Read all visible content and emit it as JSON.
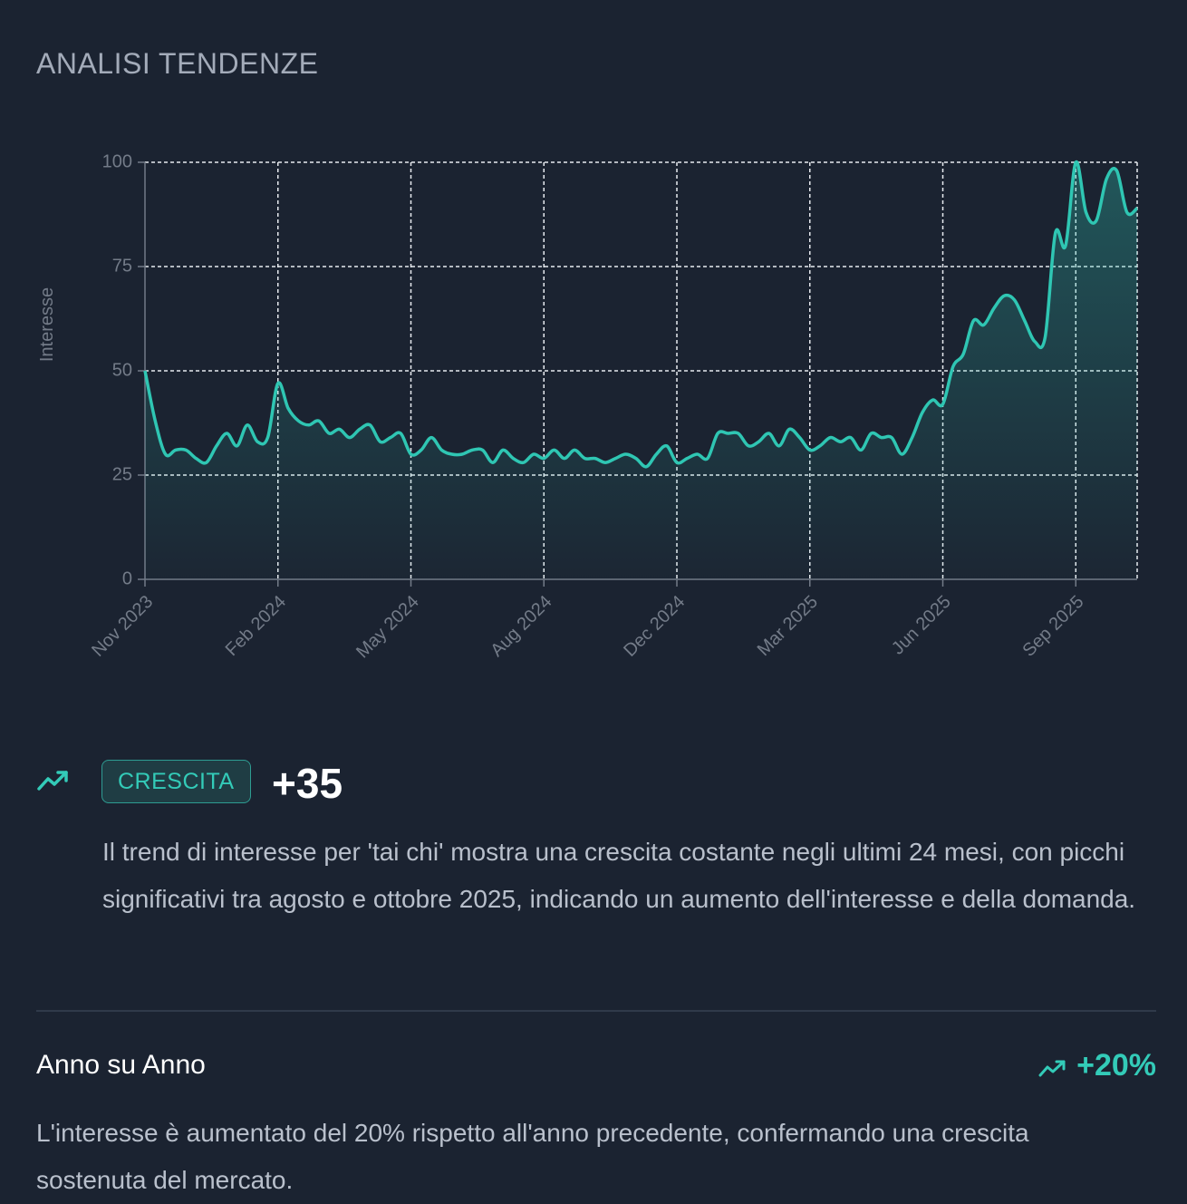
{
  "header": {
    "title": "ANALISI TENDENZE"
  },
  "chart_data": {
    "type": "line",
    "y_label": "Interesse",
    "categories": [
      "Nov 2023",
      null,
      null,
      null,
      null,
      null,
      null,
      null,
      null,
      null,
      null,
      null,
      null,
      "Feb 2024",
      null,
      null,
      null,
      null,
      null,
      null,
      null,
      null,
      null,
      null,
      null,
      null,
      "May 2024",
      null,
      null,
      null,
      null,
      null,
      null,
      null,
      null,
      null,
      null,
      null,
      null,
      "Aug 2024",
      null,
      null,
      null,
      null,
      null,
      null,
      null,
      null,
      null,
      null,
      null,
      null,
      "Dec 2024",
      null,
      null,
      null,
      null,
      null,
      null,
      null,
      null,
      null,
      null,
      null,
      null,
      "Mar 2025",
      null,
      null,
      null,
      null,
      null,
      null,
      null,
      null,
      null,
      null,
      null,
      null,
      "Jun 2025",
      null,
      null,
      null,
      null,
      null,
      null,
      null,
      null,
      null,
      null,
      null,
      null,
      "Sep 2025",
      null,
      null,
      null,
      null,
      null,
      null
    ],
    "values": [
      50,
      38,
      30,
      31,
      31,
      29,
      28,
      32,
      35,
      32,
      37,
      33,
      34,
      47,
      41,
      38,
      37,
      38,
      35,
      36,
      34,
      36,
      37,
      33,
      34,
      35,
      30,
      31,
      34,
      31,
      30,
      30,
      31,
      31,
      28,
      31,
      29,
      28,
      30,
      29,
      31,
      29,
      31,
      29,
      29,
      28,
      29,
      30,
      29,
      27,
      30,
      32,
      28,
      29,
      30,
      29,
      35,
      35,
      35,
      32,
      33,
      35,
      32,
      36,
      34,
      31,
      32,
      34,
      33,
      34,
      31,
      35,
      34,
      34,
      30,
      34,
      40,
      43,
      42,
      51,
      54,
      62,
      61,
      65,
      68,
      67,
      62,
      57,
      58,
      83,
      80,
      100,
      88,
      86,
      96,
      98,
      88,
      89
    ],
    "color": "#2fc6b3",
    "ylim": [
      0,
      100
    ],
    "yticks": [
      0,
      25,
      50,
      75,
      100
    ],
    "grid": true
  },
  "trend": {
    "badge": "CRESCITA",
    "score": "+35",
    "description": "Il trend di interesse per 'tai chi' mostra una crescita costante negli ultimi 24 mesi, con picchi significativi tra agosto e ottobre 2025, indicando un aumento dell'interesse e della domanda."
  },
  "yoy": {
    "title": "Anno su Anno",
    "change": "+20%",
    "description": "L'interesse è aumentato del 20% rispetto all'anno precedente, confermando una crescita sostenuta del mercato."
  }
}
